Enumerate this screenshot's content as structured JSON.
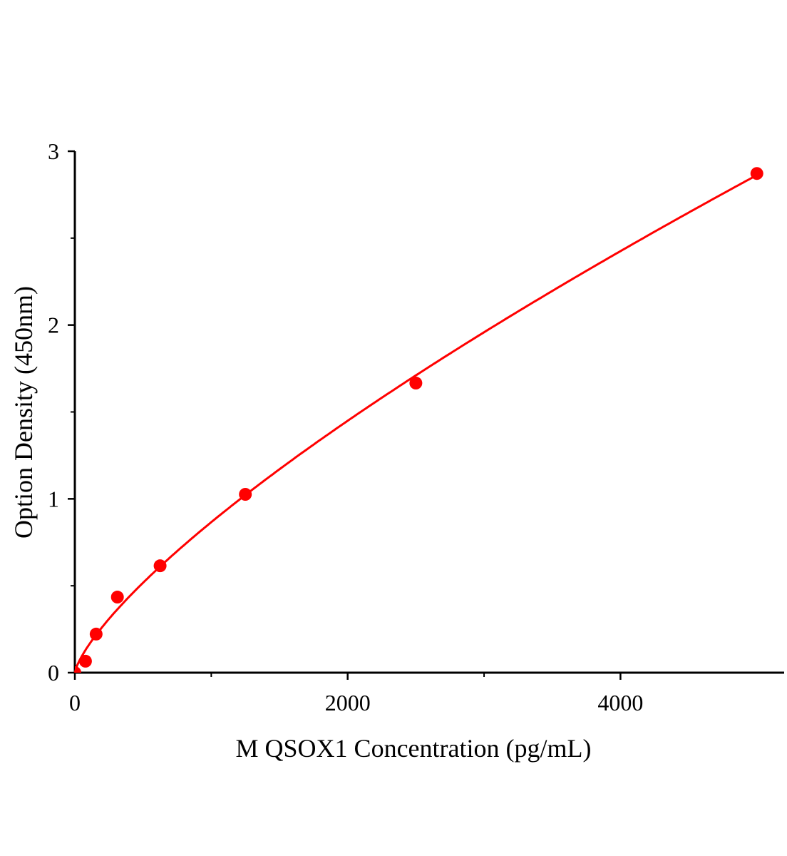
{
  "chart_data": {
    "type": "scatter",
    "title": "",
    "xlabel": "M QSOX1 Concentration (pg/mL)",
    "ylabel": "Option Density (450nm)",
    "xlim": [
      0,
      5200
    ],
    "ylim": [
      0,
      3
    ],
    "x_ticks": [
      0,
      2000,
      4000
    ],
    "x_minor_ticks": [
      1000,
      3000
    ],
    "y_ticks": [
      0,
      1,
      2,
      3
    ],
    "y_minor_ticks": [
      0.5,
      1.5,
      2.5
    ],
    "grid": false,
    "series": [
      {
        "points": [
          {
            "x": 0,
            "y": 0
          },
          {
            "x": 78,
            "y": 0.066
          },
          {
            "x": 156,
            "y": 0.222
          },
          {
            "x": 312,
            "y": 0.435
          },
          {
            "x": 625,
            "y": 0.615
          },
          {
            "x": 1250,
            "y": 1.026
          },
          {
            "x": 2500,
            "y": 1.666
          },
          {
            "x": 5000,
            "y": 2.872
          }
        ],
        "fit": {
          "model": "power",
          "a": 0.00511,
          "b": 0.743
        }
      }
    ],
    "colors": {
      "series": "#ff0000",
      "axis": "#000000"
    }
  }
}
